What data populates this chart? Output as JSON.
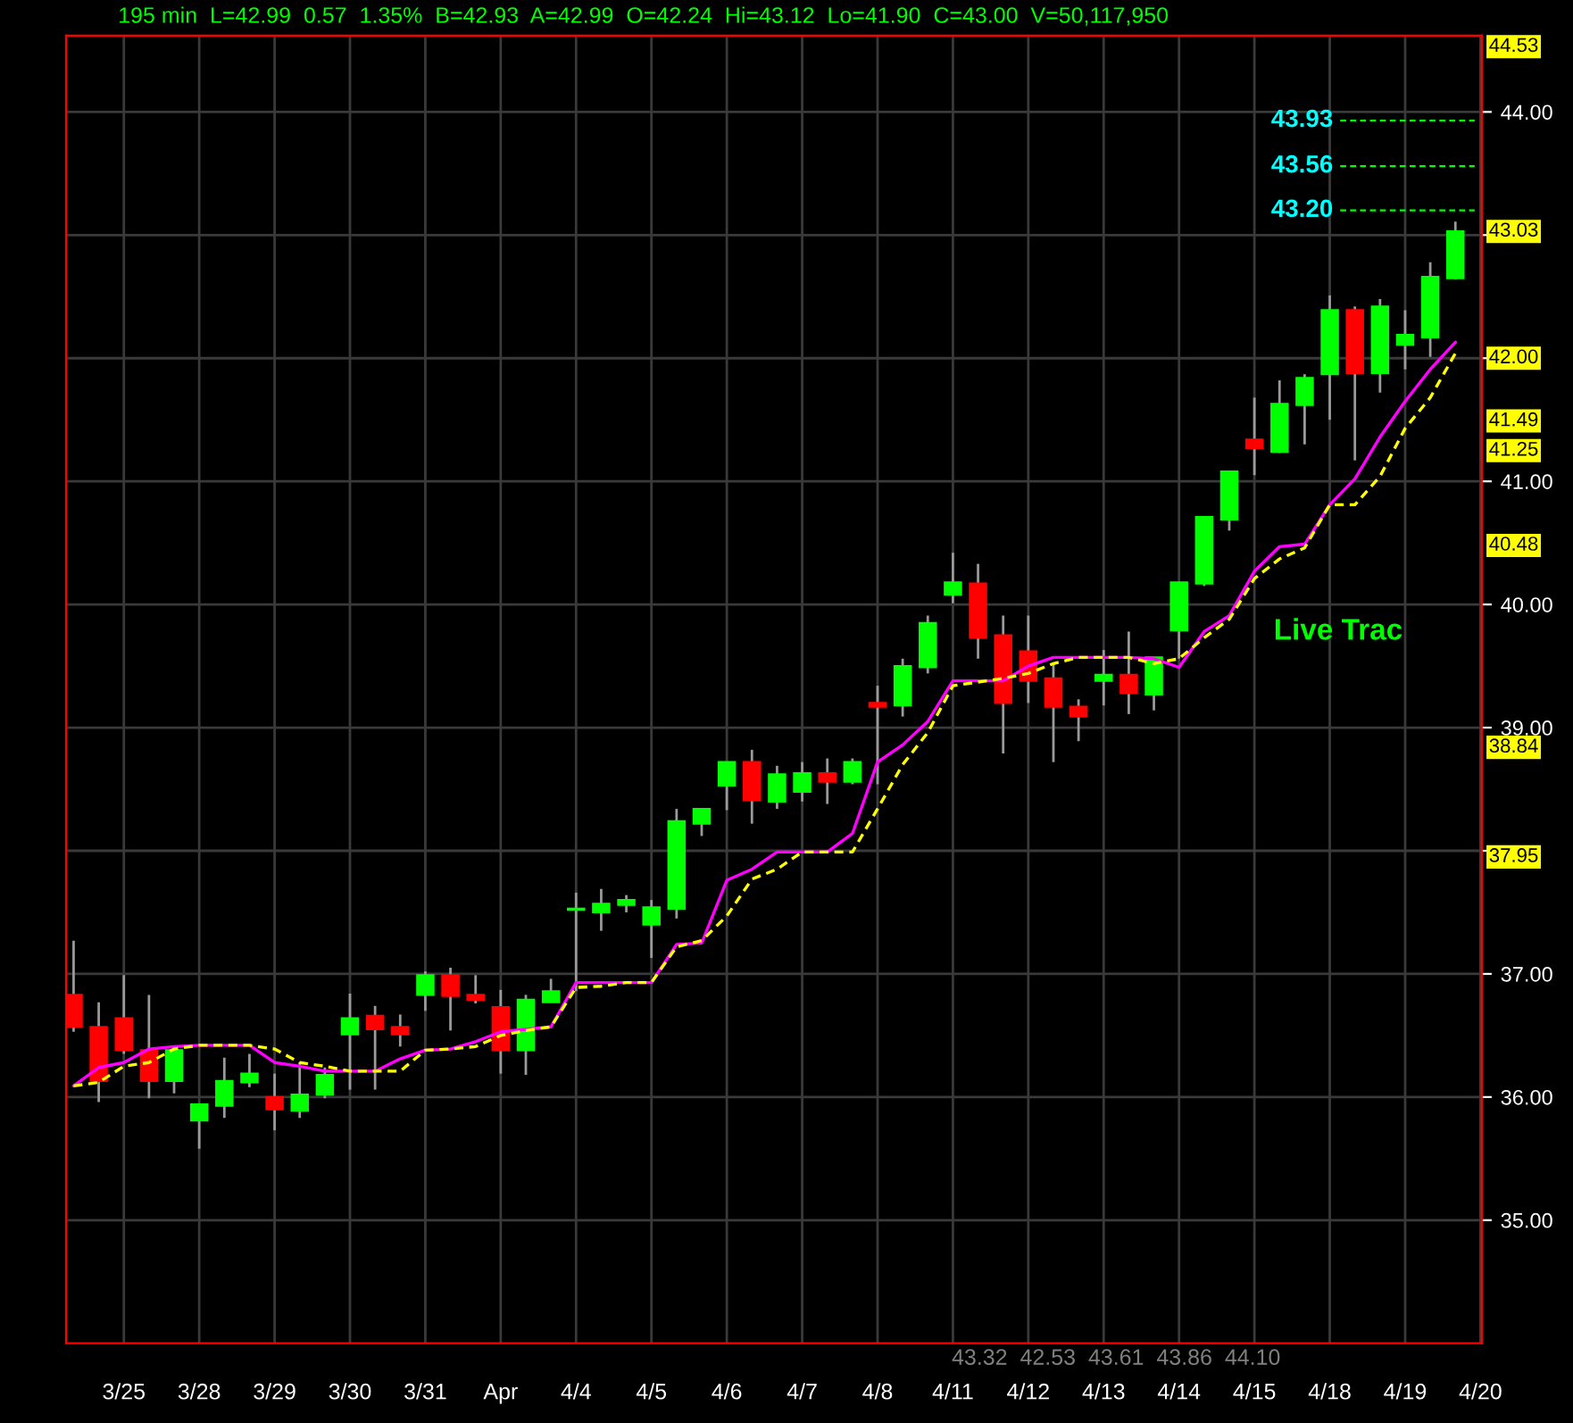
{
  "chart_data": {
    "type": "candlestick",
    "title": "195 min  L=42.99  0.57  1.35%  B=42.93  A=42.99  O=42.24  Hi=43.12  Lo=41.90  C=43.00  V=50,117,950",
    "categories": [
      null,
      null,
      "3/25",
      null,
      null,
      "3/28",
      null,
      null,
      "3/29",
      null,
      null,
      "3/30",
      null,
      null,
      "3/31",
      null,
      null,
      "Apr",
      null,
      null,
      "4/4",
      null,
      null,
      "4/5",
      null,
      null,
      "4/6",
      null,
      null,
      "4/7",
      null,
      null,
      "4/8",
      null,
      null,
      "4/11",
      null,
      null,
      "4/12",
      null,
      null,
      "4/13",
      null,
      null,
      "4/14",
      null,
      null,
      "4/15",
      null,
      null,
      "4/18",
      null,
      null,
      "4/19",
      null,
      null,
      "4/20"
    ],
    "ohlc": [
      [
        36.83,
        37.27,
        36.53,
        36.57
      ],
      [
        36.57,
        36.77,
        35.96,
        36.13
      ],
      [
        36.64,
        36.99,
        36.35,
        36.38
      ],
      [
        36.38,
        36.83,
        35.99,
        36.13
      ],
      [
        36.13,
        36.41,
        36.03,
        36.38
      ],
      [
        35.81,
        35.95,
        35.58,
        35.94
      ],
      [
        35.93,
        36.32,
        35.83,
        36.13
      ],
      [
        36.12,
        36.35,
        36.08,
        36.19
      ],
      [
        36.0,
        36.19,
        35.73,
        35.9
      ],
      [
        35.89,
        36.28,
        35.83,
        36.02
      ],
      [
        36.02,
        36.24,
        35.99,
        36.18
      ],
      [
        36.51,
        36.84,
        36.06,
        36.64
      ],
      [
        36.66,
        36.74,
        36.06,
        36.55
      ],
      [
        36.57,
        36.67,
        36.41,
        36.51
      ],
      [
        36.83,
        37.02,
        36.7,
        36.99
      ],
      [
        36.99,
        37.05,
        36.54,
        36.82
      ],
      [
        36.83,
        36.99,
        36.76,
        36.79
      ],
      [
        36.73,
        36.87,
        36.19,
        36.38
      ],
      [
        36.38,
        36.83,
        36.18,
        36.79
      ],
      [
        36.77,
        36.96,
        36.77,
        36.86
      ],
      [
        37.52,
        37.66,
        36.86,
        37.53
      ],
      [
        37.5,
        37.69,
        37.35,
        37.57
      ],
      [
        37.56,
        37.64,
        37.5,
        37.6
      ],
      [
        37.4,
        37.6,
        37.13,
        37.54
      ],
      [
        37.53,
        38.34,
        37.45,
        38.24
      ],
      [
        38.22,
        38.34,
        38.12,
        38.34
      ],
      [
        38.53,
        38.72,
        38.33,
        38.72
      ],
      [
        38.72,
        38.82,
        38.22,
        38.41
      ],
      [
        38.4,
        38.69,
        38.34,
        38.62
      ],
      [
        38.48,
        38.72,
        38.4,
        38.63
      ],
      [
        38.63,
        38.75,
        38.38,
        38.56
      ],
      [
        38.56,
        38.75,
        38.54,
        38.72
      ],
      [
        39.2,
        39.34,
        38.54,
        39.17
      ],
      [
        39.18,
        39.56,
        39.09,
        39.5
      ],
      [
        39.49,
        39.91,
        39.44,
        39.85
      ],
      [
        40.08,
        40.42,
        40.01,
        40.18
      ],
      [
        40.17,
        40.33,
        39.56,
        39.73
      ],
      [
        39.75,
        39.91,
        38.79,
        39.2
      ],
      [
        39.62,
        39.91,
        39.2,
        39.38
      ],
      [
        39.4,
        39.53,
        38.72,
        39.17
      ],
      [
        39.17,
        39.23,
        38.89,
        39.09
      ],
      [
        39.38,
        39.63,
        39.18,
        39.43
      ],
      [
        39.43,
        39.78,
        39.11,
        39.28
      ],
      [
        39.27,
        39.57,
        39.14,
        39.57
      ],
      [
        39.79,
        40.18,
        39.56,
        40.18
      ],
      [
        40.17,
        40.71,
        40.15,
        40.71
      ],
      [
        40.69,
        41.08,
        40.6,
        41.08
      ],
      [
        41.34,
        41.68,
        41.05,
        41.27
      ],
      [
        41.24,
        41.82,
        41.23,
        41.63
      ],
      [
        41.62,
        41.87,
        41.3,
        41.84
      ],
      [
        41.87,
        42.51,
        41.5,
        42.39
      ],
      [
        42.39,
        42.42,
        41.17,
        41.88
      ],
      [
        41.88,
        42.48,
        41.72,
        42.42
      ],
      [
        42.11,
        42.39,
        41.91,
        42.19
      ],
      [
        42.17,
        42.78,
        42.01,
        42.66
      ],
      [
        42.65,
        43.11,
        42.64,
        43.03
      ],
      null
    ],
    "colors": [
      "#ff0000",
      "#ff0000",
      "#ff0000",
      "#ff0000",
      "#00ff00",
      "#00ff00",
      "#00ff00",
      "#00ff00",
      "#ff0000",
      "#00ff00",
      "#00ff00",
      "#00ff00",
      "#ff0000",
      "#ff0000",
      "#00ff00",
      "#ff0000",
      "#ff0000",
      "#ff0000",
      "#00ff00",
      "#00ff00",
      "#00ff00",
      "#00ff00",
      "#00ff00",
      "#00ff00",
      "#00ff00",
      "#00ff00",
      "#00ff00",
      "#ff0000",
      "#00ff00",
      "#00ff00",
      "#ff0000",
      "#00ff00",
      "#ff0000",
      "#00ff00",
      "#00ff00",
      "#00ff00",
      "#ff0000",
      "#ff0000",
      "#ff0000",
      "#ff0000",
      "#ff0000",
      "#00ff00",
      "#ff0000",
      "#00ff00",
      "#00ff00",
      "#00ff00",
      "#00ff00",
      "#ff0000",
      "#00ff00",
      "#00ff00",
      "#00ff00",
      "#ff0000",
      "#00ff00",
      "#00ff00",
      "#00ff00",
      "#00ff00",
      null
    ],
    "series": [
      {
        "type": "line",
        "color": "#ff00ff",
        "line_style": "solid",
        "values": [
          36.09,
          36.24,
          36.28,
          36.39,
          36.41,
          36.42,
          36.42,
          36.42,
          36.28,
          36.25,
          36.21,
          36.21,
          36.21,
          36.31,
          36.38,
          36.39,
          36.45,
          36.53,
          36.55,
          36.57,
          36.93,
          36.93,
          36.93,
          36.93,
          37.24,
          37.25,
          37.76,
          37.85,
          37.99,
          37.99,
          37.99,
          38.14,
          38.72,
          38.86,
          39.05,
          39.38,
          39.38,
          39.38,
          39.5,
          39.57,
          39.57,
          39.57,
          39.57,
          39.56,
          39.49,
          39.78,
          39.91,
          40.27,
          40.47,
          40.49,
          40.81,
          41.02,
          41.36,
          41.65,
          41.91,
          42.13,
          null
        ]
      },
      {
        "type": "line",
        "color": "#ffff00",
        "line_style": "dashed",
        "values": [
          36.09,
          36.12,
          36.25,
          36.28,
          36.39,
          36.42,
          36.42,
          36.42,
          36.39,
          36.28,
          36.25,
          36.21,
          36.21,
          36.21,
          36.38,
          36.39,
          36.41,
          36.5,
          36.54,
          36.57,
          36.89,
          36.9,
          36.93,
          36.93,
          37.22,
          37.27,
          37.47,
          37.77,
          37.85,
          37.99,
          37.99,
          37.99,
          38.34,
          38.7,
          38.96,
          39.34,
          39.37,
          39.4,
          39.44,
          39.52,
          39.57,
          39.57,
          39.57,
          39.52,
          39.56,
          39.73,
          39.88,
          40.21,
          40.37,
          40.46,
          40.81,
          40.81,
          41.04,
          41.43,
          41.68,
          42.04,
          null
        ]
      }
    ],
    "ylim": [
      34.0,
      44.62
    ],
    "yticks": [
      {
        "value": 35,
        "label": "35.00"
      },
      {
        "value": 36,
        "label": "36.00"
      },
      {
        "value": 37,
        "label": "37.00"
      },
      {
        "value": 38,
        "label": null
      },
      {
        "value": 39,
        "label": "39.00"
      },
      {
        "value": 40,
        "label": "40.00"
      },
      {
        "value": 41,
        "label": "41.00"
      },
      {
        "value": 42,
        "label": null
      },
      {
        "value": 43,
        "label": null
      },
      {
        "value": 44,
        "label": "44.00"
      }
    ],
    "grid": true,
    "ref_lines": [
      {
        "axis": "y",
        "value": 43.93,
        "label": "43.93",
        "color": "#00ff00",
        "line_style": "dashed"
      },
      {
        "axis": "y",
        "value": 43.56,
        "label": "43.56",
        "color": "#00ff00",
        "line_style": "dashed"
      },
      {
        "axis": "y",
        "value": 43.2,
        "label": "43.20",
        "color": "#00ff00",
        "line_style": "dashed"
      }
    ],
    "annotations": [
      "Live Trac",
      "43.32  42.53  43.61  43.86  44.10",
      {
        "text": "44.53",
        "y": 44.53
      },
      {
        "text": "43.03",
        "y": 43.03
      },
      {
        "text": "42.00",
        "y": 42.0
      },
      {
        "text": "41.49",
        "y": 41.49
      },
      {
        "text": "41.25",
        "y": 41.25
      },
      {
        "text": "40.48",
        "y": 40.48
      },
      {
        "text": "38.84",
        "y": 38.84
      },
      {
        "text": "37.95",
        "y": 37.95
      }
    ]
  }
}
